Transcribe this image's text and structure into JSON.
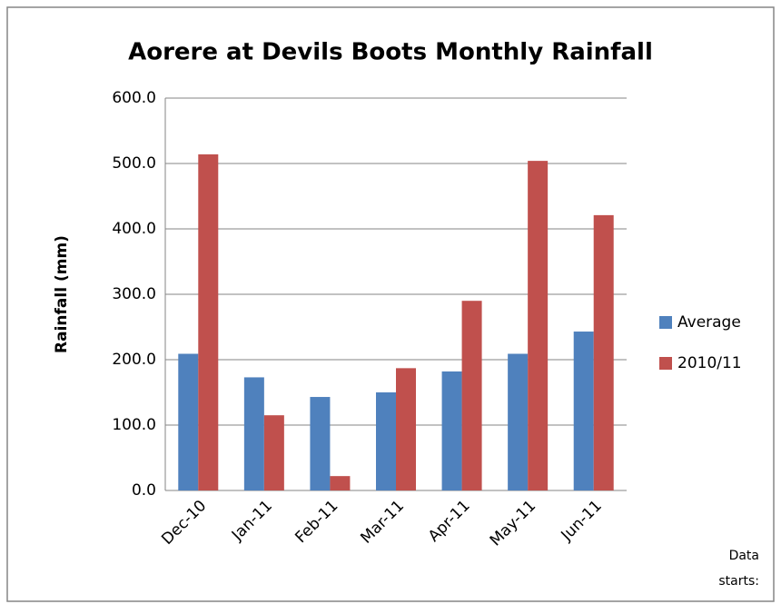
{
  "chart_data": {
    "type": "bar",
    "title": "Aorere at Devils Boots Monthly Rainfall",
    "ylabel": "Rainfall (mm)",
    "categories": [
      "Dec-10",
      "Jan-11",
      "Feb-11",
      "Mar-11",
      "Apr-11",
      "May-11",
      "Jun-11"
    ],
    "series": [
      {
        "name": "Average",
        "color": "#4f81bd",
        "values": [
          209,
          173,
          143,
          150,
          182,
          209,
          243
        ]
      },
      {
        "name": "2010/11",
        "color": "#c0504d",
        "values": [
          514,
          115,
          22,
          187,
          290,
          504,
          421
        ]
      }
    ],
    "ylim": [
      0,
      600
    ],
    "yticks": [
      {
        "value": 0,
        "label": "0.0"
      },
      {
        "value": 100,
        "label": "100.0"
      },
      {
        "value": 200,
        "label": "200.0"
      },
      {
        "value": 300,
        "label": "300.0"
      },
      {
        "value": 400,
        "label": "400.0"
      },
      {
        "value": 500,
        "label": "500.0"
      },
      {
        "value": 600,
        "label": "600.0"
      }
    ],
    "grid": true,
    "legend": "right",
    "annotations": [
      "Data",
      "starts:"
    ]
  }
}
